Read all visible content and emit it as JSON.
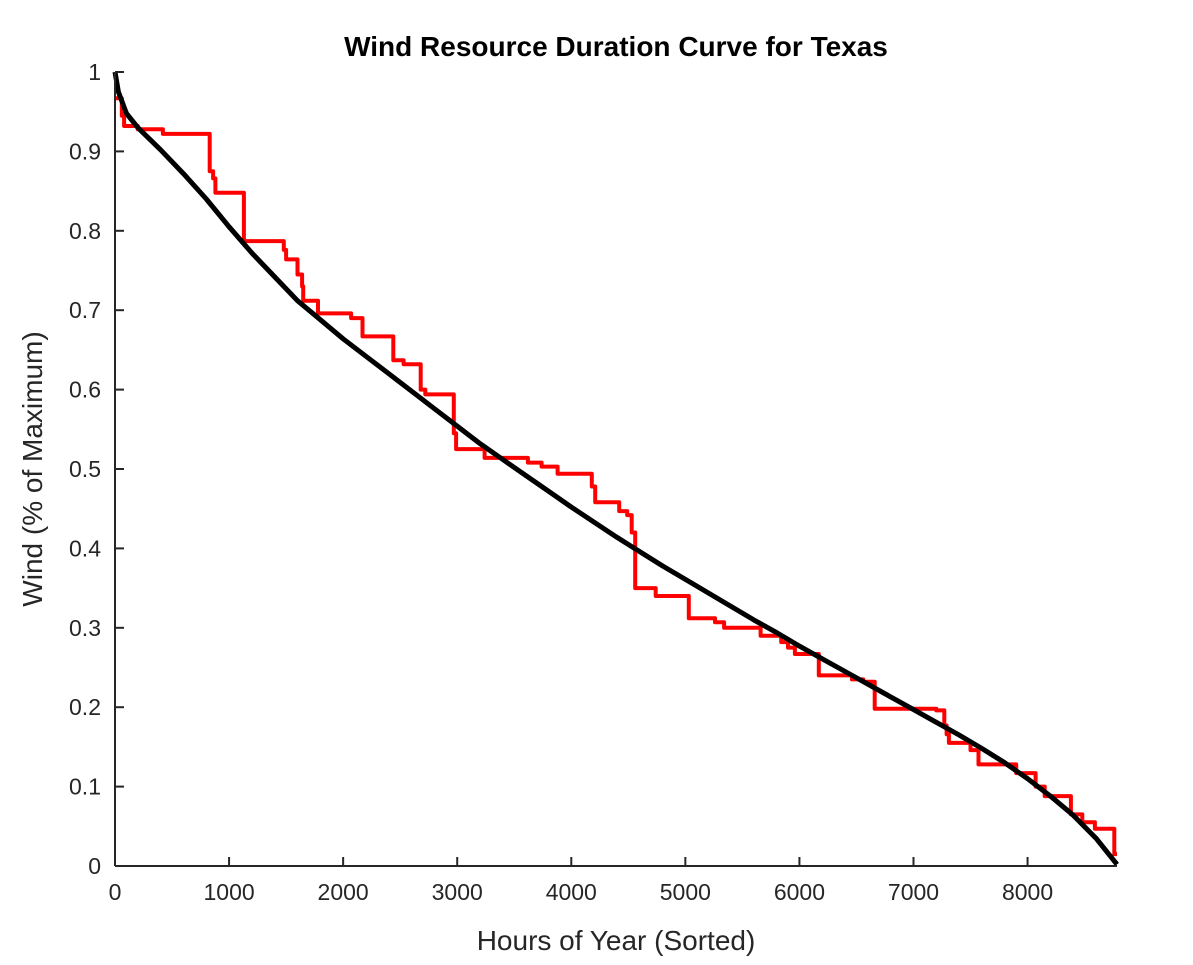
{
  "chart_data": {
    "type": "line",
    "title": "Wind Resource Duration Curve for Texas",
    "xlabel": "Hours of Year (Sorted)",
    "ylabel": "Wind (% of Maximum)",
    "xlim": [
      0,
      8784
    ],
    "ylim": [
      0,
      1
    ],
    "xticks": [
      0,
      1000,
      2000,
      3000,
      4000,
      5000,
      6000,
      7000,
      8000
    ],
    "yticks": [
      0,
      0.1,
      0.2,
      0.3,
      0.4,
      0.5,
      0.6,
      0.7,
      0.8,
      0.9,
      1
    ],
    "xtick_labels": [
      "0",
      "1000",
      "2000",
      "3000",
      "4000",
      "5000",
      "6000",
      "7000",
      "8000"
    ],
    "ytick_labels": [
      "0",
      "0.1",
      "0.2",
      "0.3",
      "0.4",
      "0.5",
      "0.6",
      "0.7",
      "0.8",
      "0.9",
      "1"
    ],
    "grid": false,
    "series": [
      {
        "color": "#000000",
        "style": "smooth",
        "points": [
          [
            0,
            1.0
          ],
          [
            30,
            0.975
          ],
          [
            100,
            0.948
          ],
          [
            200,
            0.93
          ],
          [
            400,
            0.902
          ],
          [
            600,
            0.872
          ],
          [
            800,
            0.84
          ],
          [
            1000,
            0.805
          ],
          [
            1200,
            0.772
          ],
          [
            1400,
            0.742
          ],
          [
            1600,
            0.712
          ],
          [
            1800,
            0.688
          ],
          [
            2000,
            0.664
          ],
          [
            2200,
            0.642
          ],
          [
            2400,
            0.62
          ],
          [
            2600,
            0.598
          ],
          [
            2800,
            0.576
          ],
          [
            3000,
            0.554
          ],
          [
            3200,
            0.532
          ],
          [
            3400,
            0.512
          ],
          [
            3600,
            0.492
          ],
          [
            3800,
            0.472
          ],
          [
            4000,
            0.452
          ],
          [
            4200,
            0.433
          ],
          [
            4400,
            0.414
          ],
          [
            4600,
            0.396
          ],
          [
            4800,
            0.378
          ],
          [
            5000,
            0.361
          ],
          [
            5200,
            0.344
          ],
          [
            5400,
            0.327
          ],
          [
            5600,
            0.31
          ],
          [
            5800,
            0.294
          ],
          [
            6000,
            0.277
          ],
          [
            6200,
            0.261
          ],
          [
            6400,
            0.245
          ],
          [
            6600,
            0.229
          ],
          [
            6800,
            0.213
          ],
          [
            7000,
            0.197
          ],
          [
            7200,
            0.181
          ],
          [
            7400,
            0.165
          ],
          [
            7600,
            0.148
          ],
          [
            7800,
            0.13
          ],
          [
            8000,
            0.11
          ],
          [
            8200,
            0.088
          ],
          [
            8400,
            0.064
          ],
          [
            8600,
            0.035
          ],
          [
            8784,
            0.002
          ]
        ]
      },
      {
        "color": "#ff0000",
        "style": "step",
        "points": [
          [
            0,
            0.967
          ],
          [
            60,
            0.967
          ],
          [
            60,
            0.945
          ],
          [
            80,
            0.945
          ],
          [
            80,
            0.932
          ],
          [
            200,
            0.932
          ],
          [
            200,
            0.928
          ],
          [
            420,
            0.928
          ],
          [
            420,
            0.922
          ],
          [
            830,
            0.922
          ],
          [
            830,
            0.875
          ],
          [
            860,
            0.875
          ],
          [
            860,
            0.866
          ],
          [
            880,
            0.866
          ],
          [
            880,
            0.848
          ],
          [
            1130,
            0.848
          ],
          [
            1130,
            0.787
          ],
          [
            1480,
            0.787
          ],
          [
            1480,
            0.776
          ],
          [
            1500,
            0.776
          ],
          [
            1500,
            0.764
          ],
          [
            1600,
            0.764
          ],
          [
            1600,
            0.745
          ],
          [
            1640,
            0.745
          ],
          [
            1640,
            0.73
          ],
          [
            1650,
            0.73
          ],
          [
            1650,
            0.712
          ],
          [
            1780,
            0.712
          ],
          [
            1780,
            0.696
          ],
          [
            2070,
            0.696
          ],
          [
            2070,
            0.69
          ],
          [
            2170,
            0.69
          ],
          [
            2170,
            0.667
          ],
          [
            2440,
            0.667
          ],
          [
            2440,
            0.637
          ],
          [
            2530,
            0.637
          ],
          [
            2530,
            0.632
          ],
          [
            2680,
            0.632
          ],
          [
            2680,
            0.6
          ],
          [
            2720,
            0.6
          ],
          [
            2720,
            0.594
          ],
          [
            2970,
            0.594
          ],
          [
            2970,
            0.545
          ],
          [
            2990,
            0.545
          ],
          [
            2990,
            0.525
          ],
          [
            3240,
            0.525
          ],
          [
            3240,
            0.514
          ],
          [
            3620,
            0.514
          ],
          [
            3620,
            0.508
          ],
          [
            3740,
            0.508
          ],
          [
            3740,
            0.503
          ],
          [
            3880,
            0.503
          ],
          [
            3880,
            0.494
          ],
          [
            4180,
            0.494
          ],
          [
            4180,
            0.478
          ],
          [
            4210,
            0.478
          ],
          [
            4210,
            0.458
          ],
          [
            4420,
            0.458
          ],
          [
            4420,
            0.447
          ],
          [
            4490,
            0.447
          ],
          [
            4490,
            0.442
          ],
          [
            4530,
            0.442
          ],
          [
            4530,
            0.42
          ],
          [
            4560,
            0.42
          ],
          [
            4560,
            0.35
          ],
          [
            4740,
            0.35
          ],
          [
            4740,
            0.34
          ],
          [
            5030,
            0.34
          ],
          [
            5030,
            0.312
          ],
          [
            5260,
            0.312
          ],
          [
            5260,
            0.307
          ],
          [
            5340,
            0.307
          ],
          [
            5340,
            0.3
          ],
          [
            5660,
            0.3
          ],
          [
            5660,
            0.29
          ],
          [
            5840,
            0.29
          ],
          [
            5840,
            0.282
          ],
          [
            5900,
            0.282
          ],
          [
            5900,
            0.275
          ],
          [
            5960,
            0.275
          ],
          [
            5960,
            0.267
          ],
          [
            6170,
            0.267
          ],
          [
            6170,
            0.24
          ],
          [
            6460,
            0.24
          ],
          [
            6460,
            0.235
          ],
          [
            6560,
            0.235
          ],
          [
            6560,
            0.232
          ],
          [
            6660,
            0.232
          ],
          [
            6660,
            0.198
          ],
          [
            7200,
            0.198
          ],
          [
            7200,
            0.196
          ],
          [
            7270,
            0.196
          ],
          [
            7270,
            0.177
          ],
          [
            7290,
            0.177
          ],
          [
            7290,
            0.166
          ],
          [
            7310,
            0.166
          ],
          [
            7310,
            0.155
          ],
          [
            7500,
            0.155
          ],
          [
            7500,
            0.146
          ],
          [
            7570,
            0.146
          ],
          [
            7570,
            0.128
          ],
          [
            7900,
            0.128
          ],
          [
            7900,
            0.117
          ],
          [
            8070,
            0.117
          ],
          [
            8070,
            0.1
          ],
          [
            8150,
            0.1
          ],
          [
            8150,
            0.088
          ],
          [
            8380,
            0.088
          ],
          [
            8380,
            0.065
          ],
          [
            8480,
            0.065
          ],
          [
            8480,
            0.055
          ],
          [
            8590,
            0.055
          ],
          [
            8590,
            0.047
          ],
          [
            8760,
            0.047
          ],
          [
            8760,
            0.015
          ],
          [
            8784,
            0.015
          ]
        ]
      }
    ]
  }
}
